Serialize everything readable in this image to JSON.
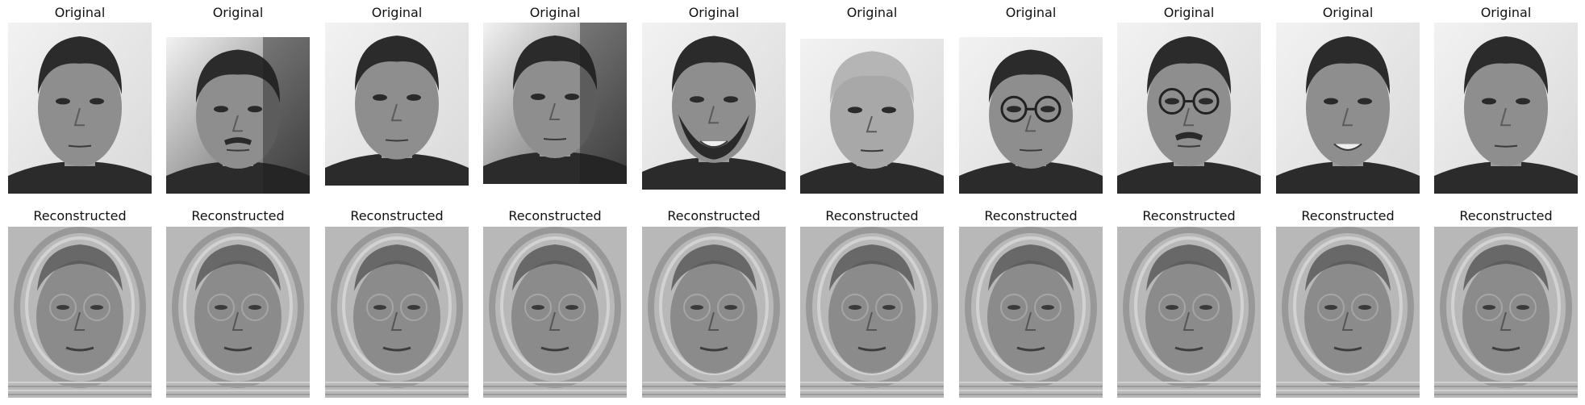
{
  "rows": [
    {
      "name": "original",
      "label": "Original",
      "panels": [
        {
          "style": "short hair, no glasses, neutral"
        },
        {
          "style": "curly dark hair, beard, shadowed side"
        },
        {
          "style": "short dark hair, neutral"
        },
        {
          "style": "dark hair, half-shadowed face"
        },
        {
          "style": "curly hair, full beard, smiling"
        },
        {
          "style": "older man, receding gray hair"
        },
        {
          "style": "round glasses, short dark hair"
        },
        {
          "style": "glasses, moustache"
        },
        {
          "style": "short hair, smiling"
        },
        {
          "style": "short hair, neutral"
        }
      ]
    },
    {
      "name": "reconstructed",
      "label": "Reconstructed",
      "panels": [
        {
          "style": "eigenface reconstruction"
        },
        {
          "style": "eigenface reconstruction"
        },
        {
          "style": "eigenface reconstruction"
        },
        {
          "style": "eigenface reconstruction"
        },
        {
          "style": "eigenface reconstruction"
        },
        {
          "style": "eigenface reconstruction"
        },
        {
          "style": "eigenface reconstruction"
        },
        {
          "style": "eigenface reconstruction"
        },
        {
          "style": "eigenface reconstruction"
        },
        {
          "style": "eigenface reconstruction"
        }
      ]
    }
  ],
  "colors": {
    "background": "#ffffff",
    "text": "#111111",
    "face_dark": "#2b2b2b",
    "face_mid": "#7a7a7a",
    "face_light": "#c8c8c8",
    "recon_bg": "#b8b8b8"
  }
}
